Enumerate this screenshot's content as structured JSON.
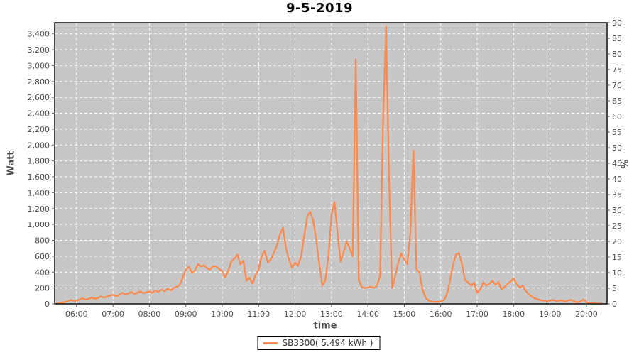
{
  "title": "9-5-2019",
  "colors": {
    "series": "#fa8a4d",
    "plot_background": "#c7c7c7",
    "gridline": "#ffffff",
    "plot_border": "#1a1a1a",
    "tick_text": "#4d4d4d",
    "axis_label_text": "#4d4d4d"
  },
  "legend": {
    "label": "SB3300( 5.494 kWh )"
  },
  "chart_data": {
    "type": "line",
    "title": "9-5-2019",
    "xlabel": "time",
    "ylabel": "Watt",
    "y2label": "%",
    "grid": true,
    "legend_position": "bottom",
    "x_tick_labels": [
      "06:00",
      "07:00",
      "08:00",
      "09:00",
      "10:00",
      "11:00",
      "12:00",
      "13:00",
      "14:00",
      "15:00",
      "16:00",
      "17:00",
      "18:00",
      "19:00",
      "20:00"
    ],
    "x_domain_minutes": [
      324,
      1234
    ],
    "y_axis": {
      "min": 0,
      "max": 3540,
      "tick_step": 200,
      "last_tick": 3400
    },
    "y2_axis": {
      "min": 0,
      "max": 90,
      "tick_step": 5
    },
    "series": [
      {
        "name": "SB3300( 5.494 kWh )",
        "color": "#fa8a4d",
        "points_minutes_watts": [
          [
            325,
            2
          ],
          [
            330,
            12
          ],
          [
            335,
            15
          ],
          [
            340,
            22
          ],
          [
            345,
            30
          ],
          [
            350,
            50
          ],
          [
            355,
            40
          ],
          [
            360,
            38
          ],
          [
            365,
            55
          ],
          [
            370,
            70
          ],
          [
            375,
            55
          ],
          [
            380,
            62
          ],
          [
            385,
            80
          ],
          [
            390,
            65
          ],
          [
            395,
            75
          ],
          [
            400,
            95
          ],
          [
            405,
            80
          ],
          [
            410,
            90
          ],
          [
            415,
            105
          ],
          [
            420,
            115
          ],
          [
            425,
            95
          ],
          [
            430,
            108
          ],
          [
            435,
            140
          ],
          [
            440,
            120
          ],
          [
            445,
            130
          ],
          [
            450,
            150
          ],
          [
            455,
            125
          ],
          [
            460,
            140
          ],
          [
            465,
            155
          ],
          [
            470,
            135
          ],
          [
            475,
            145
          ],
          [
            480,
            155
          ],
          [
            485,
            140
          ],
          [
            490,
            170
          ],
          [
            495,
            150
          ],
          [
            500,
            180
          ],
          [
            505,
            160
          ],
          [
            510,
            190
          ],
          [
            515,
            172
          ],
          [
            520,
            200
          ],
          [
            525,
            215
          ],
          [
            530,
            240
          ],
          [
            535,
            330
          ],
          [
            540,
            430
          ],
          [
            545,
            470
          ],
          [
            550,
            395
          ],
          [
            555,
            420
          ],
          [
            560,
            500
          ],
          [
            565,
            470
          ],
          [
            570,
            485
          ],
          [
            575,
            450
          ],
          [
            580,
            432
          ],
          [
            585,
            475
          ],
          [
            590,
            470
          ],
          [
            595,
            440
          ],
          [
            600,
            410
          ],
          [
            605,
            330
          ],
          [
            610,
            420
          ],
          [
            615,
            535
          ],
          [
            620,
            570
          ],
          [
            625,
            620
          ],
          [
            630,
            500
          ],
          [
            635,
            545
          ],
          [
            640,
            290
          ],
          [
            645,
            330
          ],
          [
            650,
            255
          ],
          [
            655,
            365
          ],
          [
            660,
            430
          ],
          [
            665,
            600
          ],
          [
            670,
            670
          ],
          [
            675,
            520
          ],
          [
            680,
            560
          ],
          [
            685,
            640
          ],
          [
            690,
            730
          ],
          [
            695,
            870
          ],
          [
            700,
            960
          ],
          [
            705,
            700
          ],
          [
            710,
            560
          ],
          [
            715,
            455
          ],
          [
            720,
            520
          ],
          [
            725,
            480
          ],
          [
            730,
            600
          ],
          [
            735,
            850
          ],
          [
            740,
            1100
          ],
          [
            745,
            1160
          ],
          [
            750,
            1050
          ],
          [
            755,
            800
          ],
          [
            760,
            500
          ],
          [
            765,
            230
          ],
          [
            770,
            300
          ],
          [
            775,
            600
          ],
          [
            780,
            1120
          ],
          [
            785,
            1280
          ],
          [
            790,
            900
          ],
          [
            795,
            530
          ],
          [
            800,
            650
          ],
          [
            805,
            786
          ],
          [
            810,
            700
          ],
          [
            815,
            600
          ],
          [
            820,
            3080
          ],
          [
            825,
            300
          ],
          [
            830,
            210
          ],
          [
            835,
            200
          ],
          [
            840,
            205
          ],
          [
            845,
            215
          ],
          [
            850,
            200
          ],
          [
            855,
            230
          ],
          [
            860,
            350
          ],
          [
            865,
            2280
          ],
          [
            870,
            3500
          ],
          [
            875,
            1500
          ],
          [
            880,
            200
          ],
          [
            885,
            350
          ],
          [
            890,
            520
          ],
          [
            895,
            634
          ],
          [
            900,
            560
          ],
          [
            905,
            500
          ],
          [
            910,
            900
          ],
          [
            915,
            1930
          ],
          [
            920,
            430
          ],
          [
            925,
            400
          ],
          [
            930,
            180
          ],
          [
            935,
            80
          ],
          [
            940,
            40
          ],
          [
            945,
            30
          ],
          [
            950,
            25
          ],
          [
            955,
            25
          ],
          [
            960,
            30
          ],
          [
            965,
            45
          ],
          [
            970,
            120
          ],
          [
            975,
            280
          ],
          [
            980,
            480
          ],
          [
            985,
            620
          ],
          [
            990,
            640
          ],
          [
            995,
            500
          ],
          [
            1000,
            300
          ],
          [
            1005,
            270
          ],
          [
            1010,
            230
          ],
          [
            1015,
            270
          ],
          [
            1020,
            140
          ],
          [
            1025,
            180
          ],
          [
            1030,
            270
          ],
          [
            1035,
            230
          ],
          [
            1040,
            250
          ],
          [
            1045,
            290
          ],
          [
            1050,
            240
          ],
          [
            1055,
            275
          ],
          [
            1060,
            185
          ],
          [
            1065,
            210
          ],
          [
            1070,
            250
          ],
          [
            1075,
            280
          ],
          [
            1080,
            320
          ],
          [
            1085,
            250
          ],
          [
            1090,
            205
          ],
          [
            1095,
            230
          ],
          [
            1100,
            165
          ],
          [
            1105,
            120
          ],
          [
            1110,
            90
          ],
          [
            1115,
            70
          ],
          [
            1120,
            55
          ],
          [
            1125,
            45
          ],
          [
            1130,
            40
          ],
          [
            1135,
            35
          ],
          [
            1140,
            40
          ],
          [
            1145,
            50
          ],
          [
            1150,
            35
          ],
          [
            1155,
            40
          ],
          [
            1160,
            45
          ],
          [
            1165,
            30
          ],
          [
            1170,
            45
          ],
          [
            1175,
            50
          ],
          [
            1180,
            30
          ],
          [
            1185,
            20
          ],
          [
            1190,
            30
          ],
          [
            1195,
            55
          ],
          [
            1200,
            20
          ],
          [
            1205,
            12
          ],
          [
            1210,
            10
          ],
          [
            1215,
            8
          ],
          [
            1220,
            5
          ],
          [
            1225,
            3
          ]
        ]
      }
    ]
  }
}
